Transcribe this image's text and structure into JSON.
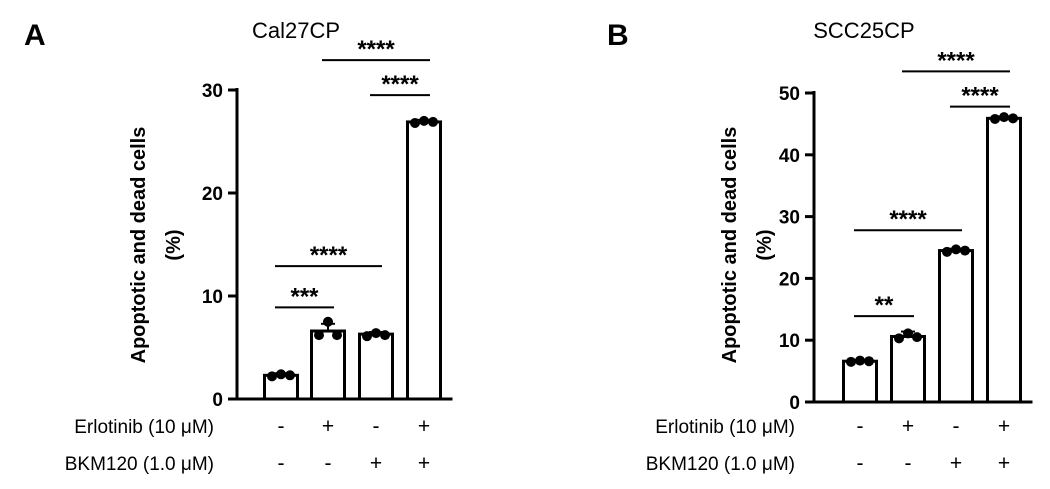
{
  "chart_data": [
    {
      "type": "bar",
      "panel": "A",
      "title": "Cal27CP",
      "ylabel_line1": "Apoptotic and dead cells",
      "ylabel_line2": "(%)",
      "ylim": [
        0,
        30
      ],
      "yticks": [
        0,
        10,
        20,
        30
      ],
      "values": [
        2.3,
        6.6,
        6.3,
        26.9
      ],
      "points": [
        [
          2.2,
          2.4,
          2.3
        ],
        [
          6.2,
          7.5,
          6.2
        ],
        [
          6.1,
          6.4,
          6.2
        ],
        [
          26.8,
          27.0,
          26.9
        ]
      ],
      "errors": [
        0.2,
        0.7,
        0.2,
        0.2
      ],
      "conditions": [
        {
          "label": "Erlotinib (10 μM)",
          "values": [
            "-",
            "+",
            "-",
            "+"
          ]
        },
        {
          "label": "BKM120 (1.0 μM)",
          "values": [
            "-",
            "-",
            "+",
            "+"
          ]
        }
      ],
      "significance": [
        {
          "from": 0,
          "to": 1,
          "label": "***",
          "y": 8.9
        },
        {
          "from": 0,
          "to": 2,
          "label": "****",
          "y": 12.9
        },
        {
          "from": 2,
          "to": 3,
          "label": "****",
          "y": 29.5
        },
        {
          "from": 1,
          "to": 3,
          "label": "****",
          "y": 32.9
        }
      ],
      "bar_fill": "#ffffff",
      "bar_stroke": "#000000"
    },
    {
      "type": "bar",
      "panel": "B",
      "title": "SCC25CP",
      "ylabel_line1": "Apoptotic and dead cells",
      "ylabel_line2": "(%)",
      "ylim": [
        0,
        50
      ],
      "yticks": [
        0,
        10,
        20,
        30,
        40,
        50
      ],
      "values": [
        6.6,
        10.6,
        24.5,
        45.9
      ],
      "points": [
        [
          6.5,
          6.7,
          6.6
        ],
        [
          10.3,
          11.1,
          10.5
        ],
        [
          24.3,
          24.7,
          24.5
        ],
        [
          45.8,
          46.1,
          45.9
        ]
      ],
      "errors": [
        0.2,
        0.8,
        0.3,
        0.3
      ],
      "conditions": [
        {
          "label": "Erlotinib (10 μM)",
          "values": [
            "-",
            "+",
            "-",
            "+"
          ]
        },
        {
          "label": "BKM120 (1.0 μM)",
          "values": [
            "-",
            "-",
            "+",
            "+"
          ]
        }
      ],
      "significance": [
        {
          "from": 0,
          "to": 1,
          "label": "**",
          "y": 13.9
        },
        {
          "from": 0,
          "to": 2,
          "label": "****",
          "y": 27.8
        },
        {
          "from": 2,
          "to": 3,
          "label": "****",
          "y": 47.8
        },
        {
          "from": 1,
          "to": 3,
          "label": "****",
          "y": 53.5
        }
      ],
      "bar_fill": "#ffffff",
      "bar_stroke": "#000000"
    }
  ]
}
